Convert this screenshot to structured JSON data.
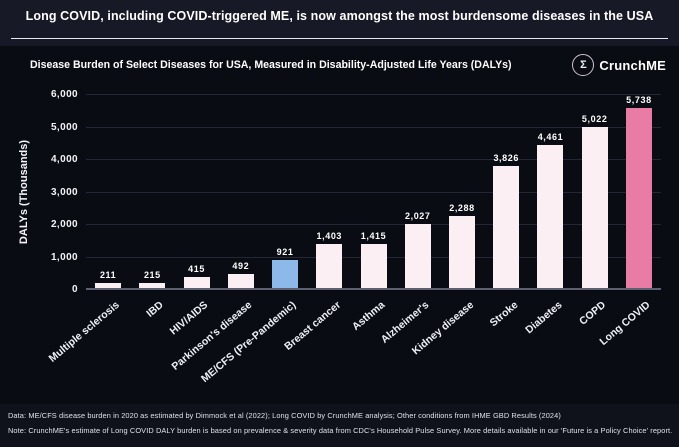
{
  "header": {
    "title": "Long COVID, including COVID-triggered ME, is now amongst the most burdensome diseases in the USA"
  },
  "brand": {
    "name": "CrunchME",
    "logo_glyph": "Σ"
  },
  "chart_data": {
    "type": "bar",
    "title": "Disease Burden of Select Diseases for USA, Measured in Disability-Adjusted Life Years (DALYs)",
    "xlabel": "",
    "ylabel": "DALYs (Thousands)",
    "ylim": [
      0,
      6000
    ],
    "ytick_step": 1000,
    "yticks": [
      "0",
      "1,000",
      "2,000",
      "3,000",
      "4,000",
      "5,000",
      "6,000"
    ],
    "grid": true,
    "legend_position": "none",
    "categories": [
      "Multiple sclerosis",
      "IBD",
      "HIV/AIDS",
      "Parkinson's disease",
      "ME/CFS (Pre-Pandemic)",
      "Breast cancer",
      "Asthma",
      "Alzheimer's",
      "Kidney disease",
      "Stroke",
      "Diabetes",
      "COPD",
      "Long COVID"
    ],
    "values": [
      211,
      215,
      415,
      492,
      921,
      1403,
      1415,
      2027,
      2288,
      3826,
      4461,
      5022,
      5738
    ],
    "value_labels": [
      "211",
      "215",
      "415",
      "492",
      "921",
      "1,403",
      "1,415",
      "2,027",
      "2,288",
      "3,826",
      "4,461",
      "5,022",
      "5,738"
    ],
    "bar_colors": [
      "#fbeff4",
      "#fbeff4",
      "#fbeff4",
      "#fbeff4",
      "#8db9ea",
      "#fbeff4",
      "#fbeff4",
      "#fbeff4",
      "#fbeff4",
      "#fbeff4",
      "#fbeff4",
      "#fbeff4",
      "#e87ca4"
    ]
  },
  "colors": {
    "header_background": "#171a26",
    "chart_background": "#0a0c13",
    "bar_default": "#fbeff4",
    "bar_mecfs_blue": "#8db9ea",
    "bar_longcovid_pink": "#e87ca4",
    "text": "#ffffff"
  },
  "footnotes": {
    "data_line": "Data: ME/CFS disease burden in 2020 as estimated by Dimmock et al (2022); Long COVID by CrunchME analysis; Other conditions from IHME GBD Results (2024)",
    "note_line": "Note: CrunchME's estimate of Long COVID DALY burden is based on prevalence & severity data from CDC's Household Pulse Survey. More details available in our 'Future is a Policy Choice' report."
  }
}
